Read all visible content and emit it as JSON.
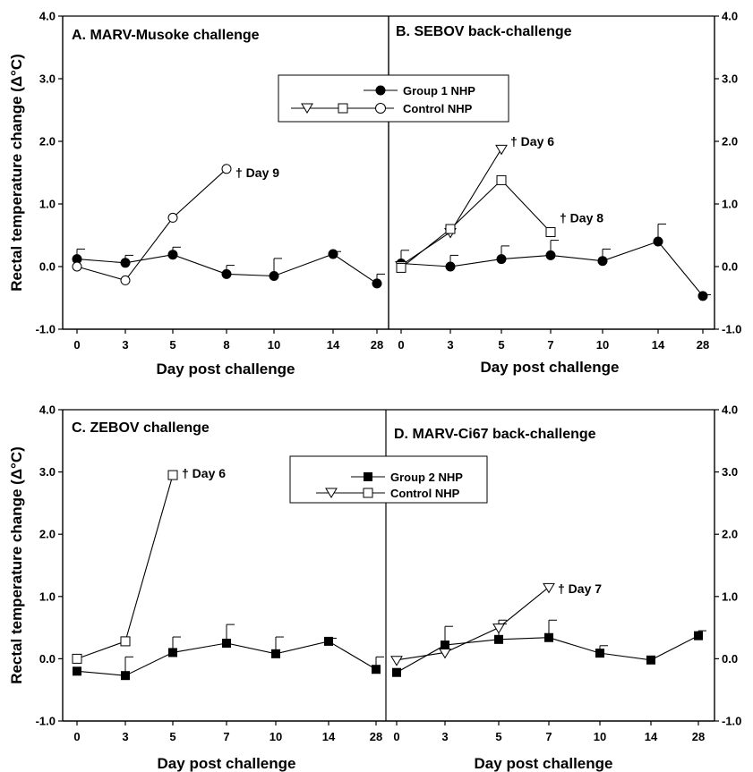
{
  "figure": {
    "ylabel": "Rectal temperature change (Δ°C)",
    "xlabel": "Day post challenge",
    "ylim": [
      -1.0,
      4.0
    ],
    "yticks": [
      "4.0",
      "3.0",
      "2.0",
      "1.0",
      "0.0",
      "-1.0"
    ]
  },
  "legends": {
    "top": {
      "group": "Group 1 NHP",
      "control": "Control NHP"
    },
    "bottom": {
      "group": "Group 2 NHP",
      "control": "Control NHP"
    }
  },
  "chart_data": [
    {
      "id": "A",
      "type": "line",
      "title": "A. MARV-Musoke challenge",
      "categories": [
        "0",
        "3",
        "5",
        "8",
        "10",
        "14",
        "28"
      ],
      "series": [
        {
          "name": "Group 1 NHP",
          "marker": "filled-circle",
          "values": [
            0.12,
            0.06,
            0.19,
            -0.12,
            -0.15,
            0.2,
            -0.27
          ],
          "error_up": [
            0.16,
            0.12,
            0.12,
            0.14,
            0.28,
            0.04,
            0.15
          ]
        },
        {
          "name": "Control NHP",
          "marker": "open-circle",
          "values": [
            0.0,
            -0.22,
            0.78,
            1.56,
            null,
            null,
            null
          ]
        }
      ],
      "annotations": [
        {
          "text": "† Day 9",
          "at_category": "8",
          "y": 1.5
        }
      ]
    },
    {
      "id": "B",
      "type": "line",
      "title": "B. SEBOV back-challenge",
      "categories": [
        "0",
        "3",
        "5",
        "7",
        "10",
        "14",
        "28"
      ],
      "series": [
        {
          "name": "Group 1 NHP",
          "marker": "filled-circle",
          "values": [
            0.05,
            0.0,
            0.12,
            0.18,
            0.09,
            0.4,
            -0.47
          ],
          "error_up": [
            0.21,
            0.18,
            0.21,
            0.24,
            0.19,
            0.28,
            0.02
          ]
        },
        {
          "name": "Control NHP",
          "marker": "open-triangle",
          "values": [
            0.02,
            0.55,
            1.88,
            null,
            null,
            null,
            null
          ]
        },
        {
          "name": "Control NHP",
          "marker": "open-square",
          "values": [
            -0.02,
            0.6,
            1.38,
            0.55,
            null,
            null,
            null
          ]
        }
      ],
      "annotations": [
        {
          "text": "† Day 6",
          "at_category": "5",
          "y": 2.0
        },
        {
          "text": "† Day 8",
          "at_category": "7",
          "y": 0.78
        }
      ]
    },
    {
      "id": "C",
      "type": "line",
      "title": "C. ZEBOV challenge",
      "categories": [
        "0",
        "3",
        "5",
        "7",
        "10",
        "14",
        "28"
      ],
      "series": [
        {
          "name": "Group 2 NHP",
          "marker": "filled-square",
          "values": [
            -0.2,
            -0.27,
            0.1,
            0.25,
            0.08,
            0.28,
            -0.17
          ],
          "error_up": [
            0.0,
            0.3,
            0.25,
            0.3,
            0.27,
            0.05,
            0.2
          ]
        },
        {
          "name": "Control NHP",
          "marker": "open-square",
          "values": [
            0.0,
            0.28,
            2.95,
            null,
            null,
            null,
            null
          ]
        }
      ],
      "annotations": [
        {
          "text": "† Day 6",
          "at_category": "5",
          "y": 2.98
        }
      ]
    },
    {
      "id": "D",
      "type": "line",
      "title": "D. MARV-Ci67 back-challenge",
      "categories": [
        "0",
        "3",
        "5",
        "7",
        "10",
        "14",
        "28"
      ],
      "series": [
        {
          "name": "Group 2 NHP",
          "marker": "filled-square",
          "values": [
            -0.22,
            0.22,
            0.31,
            0.34,
            0.09,
            -0.02,
            0.37
          ],
          "error_up": [
            0.0,
            0.3,
            0.25,
            0.28,
            0.12,
            0.0,
            0.08
          ]
        },
        {
          "name": "Control NHP",
          "marker": "open-triangle",
          "values": [
            -0.02,
            0.1,
            0.5,
            1.15,
            null,
            null,
            null
          ],
          "error_up": [
            0.0,
            0.0,
            0.12,
            0.0,
            null,
            null,
            null
          ]
        }
      ],
      "annotations": [
        {
          "text": "† Day 7",
          "at_category": "7",
          "y": 1.13
        }
      ]
    }
  ]
}
